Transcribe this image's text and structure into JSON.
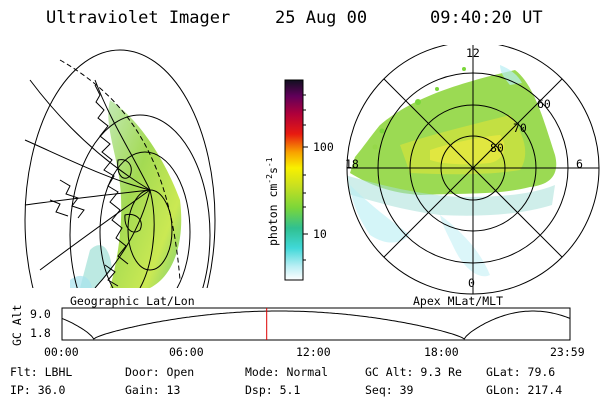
{
  "header": {
    "title": "Ultraviolet Imager",
    "date": "25 Aug 00",
    "time": "09:40:20 UT"
  },
  "colorbar": {
    "unit": "photon cm",
    "unit_sup1": "-2",
    "unit_mid": "s",
    "unit_sup2": "-1",
    "ticks": [
      "100",
      "10"
    ]
  },
  "geo_panel": {
    "label": "Geographic Lat/Lon"
  },
  "polar_panel": {
    "label": "Apex MLat/MLT",
    "mlt_labels": {
      "top": "12",
      "left": "18",
      "right": "6",
      "bottom": "0"
    },
    "mlat_labels": [
      "60",
      "70",
      "80"
    ]
  },
  "altitude_plot": {
    "ylabel": "GC Alt",
    "ymax": "9.0",
    "ymin": "1.8",
    "xticks": [
      "00:00",
      "06:00",
      "12:00",
      "18:00",
      "23:59"
    ],
    "current_time_hours": 9.67
  },
  "status": {
    "row1": {
      "filter": "Flt: LBHL",
      "door": "Door: Open",
      "mode": "Mode: Normal",
      "gc_alt": "GC Alt: 9.3 Re",
      "glat": "GLat:  79.6"
    },
    "row2": {
      "ip": "IP: 36.0",
      "gain": "Gain: 13",
      "dsp": "Dsp:    5.1",
      "seq": "Seq: 39",
      "glon": "GLon: 217.4"
    }
  },
  "colors": {
    "foreground": "#000000",
    "background": "#ffffff",
    "time_marker": "#dd0000"
  }
}
